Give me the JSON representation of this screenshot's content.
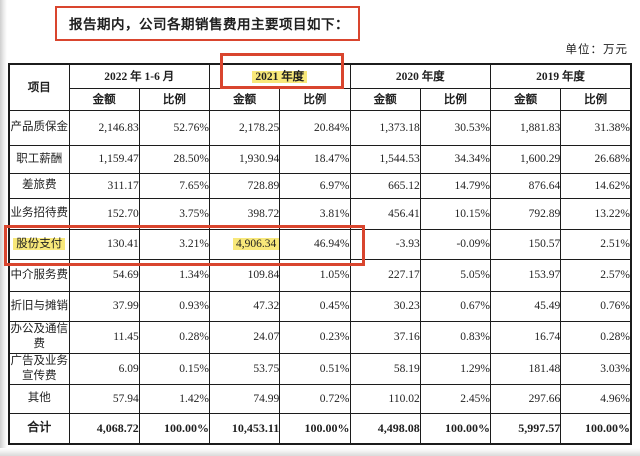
{
  "title": "报告期内，公司各期销售费用主要项目如下：",
  "unit_label": "单位：万元",
  "colors": {
    "annotation_red": "#d9452e",
    "highlight_yellow": "#f8e87a"
  },
  "table": {
    "corner_header": "项目",
    "periods": [
      "2022 年 1-6 月",
      "2021 年度",
      "2020 年度",
      "2019 年度"
    ],
    "sub_headers": [
      "金额",
      "比例"
    ],
    "rows": [
      {
        "label": "产品质保金",
        "values": [
          "2,146.83",
          "52.76%",
          "2,178.25",
          "20.84%",
          "1,373.18",
          "30.53%",
          "1,881.83",
          "31.38%"
        ]
      },
      {
        "label": "职工薪酬",
        "values": [
          "1,159.47",
          "28.50%",
          "1,930.94",
          "18.47%",
          "1,544.53",
          "34.34%",
          "1,600.29",
          "26.68%"
        ]
      },
      {
        "label": "差旅费",
        "values": [
          "311.17",
          "7.65%",
          "728.89",
          "6.97%",
          "665.12",
          "14.79%",
          "876.64",
          "14.62%"
        ]
      },
      {
        "label": "业务招待费",
        "values": [
          "152.70",
          "3.75%",
          "398.72",
          "3.81%",
          "456.41",
          "10.15%",
          "792.89",
          "13.22%"
        ]
      },
      {
        "label": "股份支付",
        "hl_label": true,
        "hl_cells": [
          2
        ],
        "values": [
          "130.41",
          "3.21%",
          "4,906.34",
          "46.94%",
          "-3.93",
          "-0.09%",
          "150.57",
          "2.51%"
        ]
      },
      {
        "label": "中介服务费",
        "values": [
          "54.69",
          "1.34%",
          "109.84",
          "1.05%",
          "227.17",
          "5.05%",
          "153.97",
          "2.57%"
        ]
      },
      {
        "label": "折旧与摊销",
        "values": [
          "37.99",
          "0.93%",
          "47.32",
          "0.45%",
          "30.23",
          "0.67%",
          "45.49",
          "0.76%"
        ]
      },
      {
        "label": "办公及通信费",
        "values": [
          "11.45",
          "0.28%",
          "24.07",
          "0.23%",
          "37.16",
          "0.83%",
          "16.74",
          "0.28%"
        ]
      },
      {
        "label": "广告及业务宣传费",
        "values": [
          "6.09",
          "0.15%",
          "53.75",
          "0.51%",
          "58.19",
          "1.29%",
          "181.48",
          "3.03%"
        ]
      },
      {
        "label": "其他",
        "values": [
          "57.94",
          "1.42%",
          "74.99",
          "0.72%",
          "110.02",
          "2.45%",
          "297.66",
          "4.96%"
        ]
      },
      {
        "label": "合计",
        "bold": true,
        "values": [
          "4,068.72",
          "100.00%",
          "10,453.11",
          "100.00%",
          "4,498.08",
          "100.00%",
          "5,997.57",
          "100.00%"
        ]
      }
    ]
  }
}
